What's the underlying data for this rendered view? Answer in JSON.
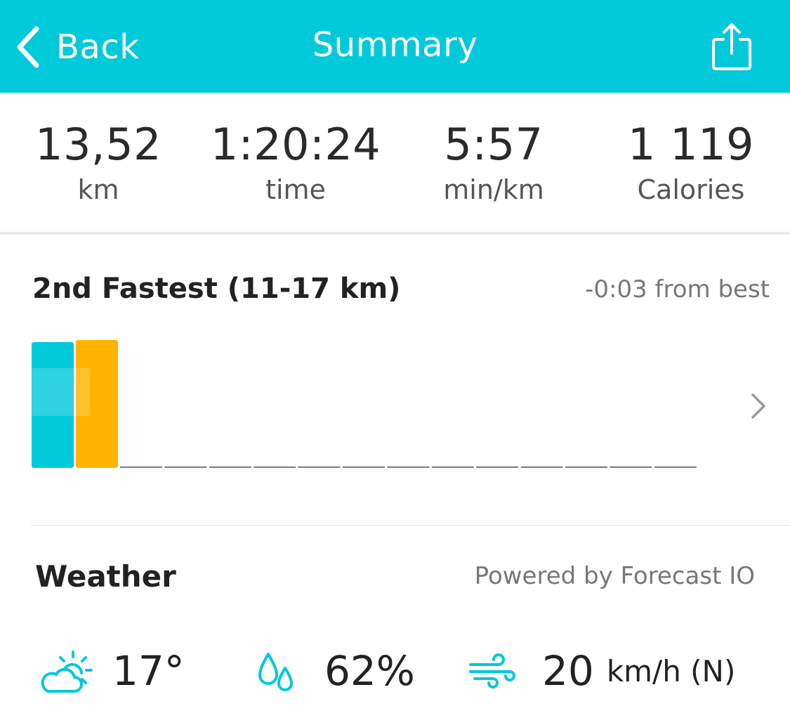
{
  "nav": {
    "back_label": "Back",
    "title": "Summary"
  },
  "stats": [
    {
      "value": "13,52",
      "label": "km"
    },
    {
      "value": "1:20:24",
      "label": "time"
    },
    {
      "value": "5:57",
      "label": "min/km"
    },
    {
      "value": "1 119",
      "label": "Calories"
    }
  ],
  "ranking": {
    "title": "2nd Fastest (11-17 km)",
    "delta": "-0:03 from best"
  },
  "chart_data": {
    "type": "bar",
    "series": [
      {
        "color": "#00c9d9",
        "values": [
          1.0
        ]
      },
      {
        "color": "#ffb300",
        "values": [
          1.0
        ]
      }
    ],
    "empty_slots": 13
  },
  "weather": {
    "title": "Weather",
    "source": "Powered by Forecast IO",
    "temperature": "17°",
    "humidity": "62%",
    "wind_value": "20",
    "wind_unit": "km/h (N)"
  },
  "colors": {
    "accent": "#00c9d9",
    "secondary": "#ffb300"
  }
}
